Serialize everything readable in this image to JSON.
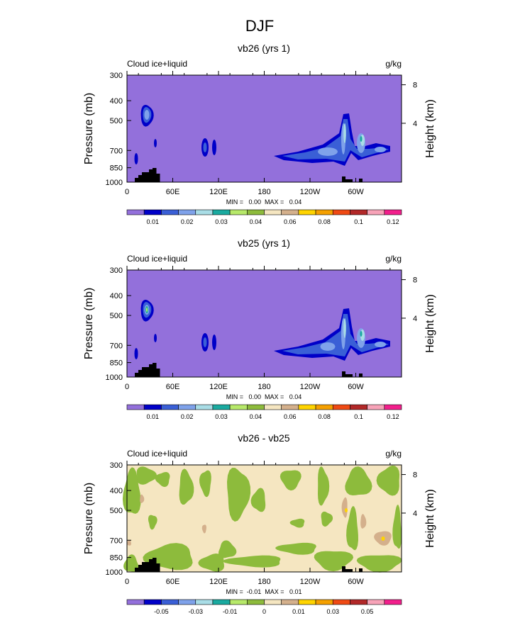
{
  "figure": {
    "title": "DJF"
  },
  "chart_data": [
    {
      "type": "heatmap",
      "title": "vb26 (yrs 1)",
      "left_label": "Cloud ice+liquid",
      "units": "g/kg",
      "ylabel": "Pressure (mb)",
      "ylabel_right": "Height (km)",
      "y_ticks": [
        "300",
        "400",
        "500",
        "700",
        "850",
        "1000"
      ],
      "y_right_ticks": [
        "8",
        "4"
      ],
      "x_ticks": [
        "0",
        "60E",
        "120E",
        "180",
        "120W",
        "60W"
      ],
      "stats": "MIN =   0.00  MAX =   0.04",
      "colorbar_labels": [
        "0.01",
        "0.02",
        "0.03",
        "0.04",
        "0.06",
        "0.08",
        "0.1",
        "0.12"
      ]
    },
    {
      "type": "heatmap",
      "title": "vb25 (yrs 1)",
      "left_label": "Cloud ice+liquid",
      "units": "g/kg",
      "ylabel": "Pressure (mb)",
      "ylabel_right": "Height (km)",
      "y_ticks": [
        "300",
        "400",
        "500",
        "700",
        "850",
        "1000"
      ],
      "y_right_ticks": [
        "8",
        "4"
      ],
      "x_ticks": [
        "0",
        "60E",
        "120E",
        "180",
        "120W",
        "60W"
      ],
      "stats": "MIN =   0.00  MAX =   0.04",
      "colorbar_labels": [
        "0.01",
        "0.02",
        "0.03",
        "0.04",
        "0.06",
        "0.08",
        "0.1",
        "0.12"
      ]
    },
    {
      "type": "heatmap",
      "title": "vb26 - vb25",
      "left_label": "Cloud ice+liquid",
      "units": "g/kg",
      "ylabel": "Pressure (mb)",
      "ylabel_right": "Height (km)",
      "y_ticks": [
        "300",
        "400",
        "500",
        "700",
        "850",
        "1000"
      ],
      "y_right_ticks": [
        "8",
        "4"
      ],
      "x_ticks": [
        "0",
        "60E",
        "120E",
        "180",
        "120W",
        "60W"
      ],
      "stats": "MIN =  -0.01  MAX =   0.01",
      "colorbar_labels": [
        "-0.05",
        "-0.03",
        "-0.01",
        "0",
        "0.01",
        "0.03",
        "0.05"
      ]
    }
  ],
  "colors": {
    "background_field": "#9370db",
    "palette": [
      "#9370db",
      "#0000c8",
      "#3a5fd6",
      "#7fa2ea",
      "#a9dde6",
      "#1aaaa0",
      "#b7e96a",
      "#8dbb3c",
      "#f5e6c1",
      "#d4b08c",
      "#ffd400",
      "#f5a000",
      "#ef4a14",
      "#b22828",
      "#f7a3b8",
      "#f21f8c"
    ],
    "diff_field": "#f5e6c1",
    "diff_green": "#8dbb3c",
    "diff_tan": "#d4b08c",
    "diff_yellow": "#ffd400",
    "topography": "#000000"
  }
}
